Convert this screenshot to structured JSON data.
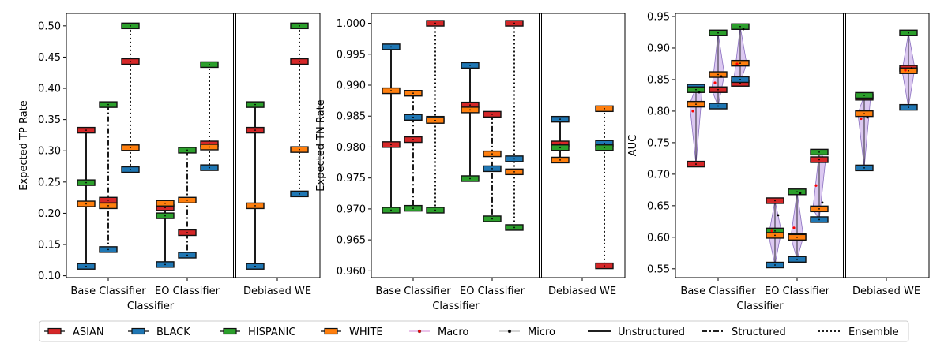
{
  "legend": {
    "groups": [
      {
        "label": "ASIAN",
        "color": "#d62728"
      },
      {
        "label": "BLACK",
        "color": "#1f77b4"
      },
      {
        "label": "HISPANIC",
        "color": "#2ca02c"
      },
      {
        "label": "WHITE",
        "color": "#ff7f0e"
      }
    ],
    "markers": [
      {
        "label": "Macro",
        "line_color": "#dda0dd",
        "dot_color": "#ff0000"
      },
      {
        "label": "Micro",
        "line_color": "#bbbbbb",
        "dot_color": "#000000"
      }
    ],
    "styles": [
      {
        "label": "Unstructured",
        "dash": "solid"
      },
      {
        "label": "Structured",
        "dash": "dashdot"
      },
      {
        "label": "Ensemble",
        "dash": "dotted"
      }
    ],
    "placement": "bottom"
  },
  "chart_data": [
    {
      "type": "errorbar",
      "xlabel": "Classifier",
      "ylabel": "Expected TP Rate",
      "ylim": [
        0.097,
        0.52
      ],
      "yticks": [
        0.1,
        0.15,
        0.2,
        0.25,
        0.3,
        0.35,
        0.4,
        0.45,
        0.5
      ],
      "ytick_labels": [
        "0.10",
        "0.15",
        "0.20",
        "0.25",
        "0.30",
        "0.35",
        "0.40",
        "0.45",
        "0.50"
      ],
      "categories": [
        "Base Classifier",
        "EO Classifier",
        "Debiased WE"
      ],
      "series": [
        {
          "classifier": "Base Classifier",
          "method": "Unstructured",
          "values": {
            "ASIAN": 0.333,
            "BLACK": 0.115,
            "HISPANIC": 0.249,
            "WHITE": 0.215
          }
        },
        {
          "classifier": "Base Classifier",
          "method": "Structured",
          "values": {
            "ASIAN": 0.221,
            "BLACK": 0.142,
            "HISPANIC": 0.374,
            "WHITE": 0.212
          }
        },
        {
          "classifier": "Base Classifier",
          "method": "Ensemble",
          "values": {
            "ASIAN": 0.443,
            "BLACK": 0.27,
            "HISPANIC": 0.5,
            "WHITE": 0.305
          }
        },
        {
          "classifier": "EO Classifier",
          "method": "Unstructured",
          "values": {
            "ASIAN": 0.209,
            "BLACK": 0.118,
            "HISPANIC": 0.196,
            "WHITE": 0.216
          }
        },
        {
          "classifier": "EO Classifier",
          "method": "Structured",
          "values": {
            "ASIAN": 0.169,
            "BLACK": 0.133,
            "HISPANIC": 0.301,
            "WHITE": 0.221
          }
        },
        {
          "classifier": "EO Classifier",
          "method": "Ensemble",
          "values": {
            "ASIAN": 0.311,
            "BLACK": 0.273,
            "HISPANIC": 0.438,
            "WHITE": 0.306
          }
        },
        {
          "classifier": "Debiased WE",
          "method": "Unstructured",
          "values": {
            "ASIAN": 0.333,
            "BLACK": 0.115,
            "HISPANIC": 0.374,
            "WHITE": 0.212
          }
        },
        {
          "classifier": "Debiased WE",
          "method": "Ensemble",
          "values": {
            "ASIAN": 0.443,
            "BLACK": 0.231,
            "HISPANIC": 0.5,
            "WHITE": 0.302
          }
        }
      ]
    },
    {
      "type": "errorbar",
      "xlabel": "Classifier",
      "ylabel": "Expected TN Rate",
      "ylim": [
        0.9589,
        1.0016
      ],
      "yticks": [
        0.96,
        0.965,
        0.97,
        0.975,
        0.98,
        0.985,
        0.99,
        0.995,
        1.0
      ],
      "ytick_labels": [
        "0.960",
        "0.965",
        "0.970",
        "0.975",
        "0.980",
        "0.985",
        "0.990",
        "0.995",
        "1.000"
      ],
      "categories": [
        "Base Classifier",
        "EO Classifier",
        "Debiased WE"
      ],
      "series": [
        {
          "classifier": "Base Classifier",
          "method": "Unstructured",
          "values": {
            "ASIAN": 0.9804,
            "BLACK": 0.9962,
            "HISPANIC": 0.9698,
            "WHITE": 0.9891
          }
        },
        {
          "classifier": "Base Classifier",
          "method": "Structured",
          "values": {
            "ASIAN": 0.9812,
            "BLACK": 0.9848,
            "HISPANIC": 0.9701,
            "WHITE": 0.9887
          }
        },
        {
          "classifier": "Base Classifier",
          "method": "Ensemble",
          "values": {
            "ASIAN": 1.0,
            "BLACK": 0.9845,
            "HISPANIC": 0.9698,
            "WHITE": 0.9843
          }
        },
        {
          "classifier": "EO Classifier",
          "method": "Unstructured",
          "values": {
            "ASIAN": 0.9868,
            "BLACK": 0.9932,
            "HISPANIC": 0.9749,
            "WHITE": 0.986
          }
        },
        {
          "classifier": "EO Classifier",
          "method": "Structured",
          "values": {
            "ASIAN": 0.9853,
            "BLACK": 0.9765,
            "HISPANIC": 0.9684,
            "WHITE": 0.9789
          }
        },
        {
          "classifier": "EO Classifier",
          "method": "Ensemble",
          "values": {
            "ASIAN": 1.0,
            "BLACK": 0.9781,
            "HISPANIC": 0.967,
            "WHITE": 0.976
          }
        },
        {
          "classifier": "Debiased WE",
          "method": "Unstructured",
          "values": {
            "ASIAN": 0.9805,
            "BLACK": 0.9845,
            "HISPANIC": 0.9799,
            "WHITE": 0.9779
          }
        },
        {
          "classifier": "Debiased WE",
          "method": "Ensemble",
          "values": {
            "ASIAN": 0.9608,
            "BLACK": 0.9806,
            "HISPANIC": 0.9799,
            "WHITE": 0.9862
          }
        }
      ]
    },
    {
      "type": "errorbar",
      "xlabel": "Classifier",
      "ylabel": "AUC",
      "ylim": [
        0.536,
        0.955
      ],
      "yticks": [
        0.55,
        0.6,
        0.65,
        0.7,
        0.75,
        0.8,
        0.85,
        0.9,
        0.95
      ],
      "ytick_labels": [
        "0.55",
        "0.60",
        "0.65",
        "0.70",
        "0.75",
        "0.80",
        "0.85",
        "0.90",
        "0.95"
      ],
      "categories": [
        "Base Classifier",
        "EO Classifier",
        "Debiased WE"
      ],
      "series": [
        {
          "classifier": "Base Classifier",
          "method": "Unstructured",
          "values": {
            "ASIAN": 0.716,
            "BLACK": 0.838,
            "HISPANIC": 0.834,
            "WHITE": 0.811
          },
          "macro": 0.8,
          "micro": 0.83
        },
        {
          "classifier": "Base Classifier",
          "method": "Structured",
          "values": {
            "ASIAN": 0.834,
            "BLACK": 0.808,
            "HISPANIC": 0.924,
            "WHITE": 0.858
          },
          "macro": 0.845,
          "micro": 0.855
        },
        {
          "classifier": "Base Classifier",
          "method": "Ensemble",
          "values": {
            "ASIAN": 0.844,
            "BLACK": 0.85,
            "HISPANIC": 0.934,
            "WHITE": 0.876
          },
          "macro": 0.875,
          "micro": 0.93
        },
        {
          "classifier": "EO Classifier",
          "method": "Unstructured",
          "values": {
            "ASIAN": 0.658,
            "BLACK": 0.556,
            "HISPANIC": 0.61,
            "WHITE": 0.603
          },
          "macro": 0.61,
          "micro": 0.635
        },
        {
          "classifier": "EO Classifier",
          "method": "Structured",
          "values": {
            "ASIAN": 0.601,
            "BLACK": 0.565,
            "HISPANIC": 0.672,
            "WHITE": 0.6
          },
          "macro": 0.615,
          "micro": 0.67
        },
        {
          "classifier": "EO Classifier",
          "method": "Ensemble",
          "values": {
            "ASIAN": 0.723,
            "BLACK": 0.628,
            "HISPANIC": 0.735,
            "WHITE": 0.645
          },
          "macro": 0.682,
          "micro": 0.655
        },
        {
          "classifier": "Debiased WE",
          "method": "Unstructured",
          "values": {
            "ASIAN": 0.822,
            "BLACK": 0.71,
            "HISPANIC": 0.825,
            "WHITE": 0.796
          },
          "macro": 0.788,
          "micro": 0.79
        },
        {
          "classifier": "Debiased WE",
          "method": "Ensemble",
          "values": {
            "ASIAN": 0.868,
            "BLACK": 0.806,
            "HISPANIC": 0.924,
            "WHITE": 0.864
          },
          "macro": 0.865,
          "micro": 0.868
        }
      ]
    }
  ]
}
